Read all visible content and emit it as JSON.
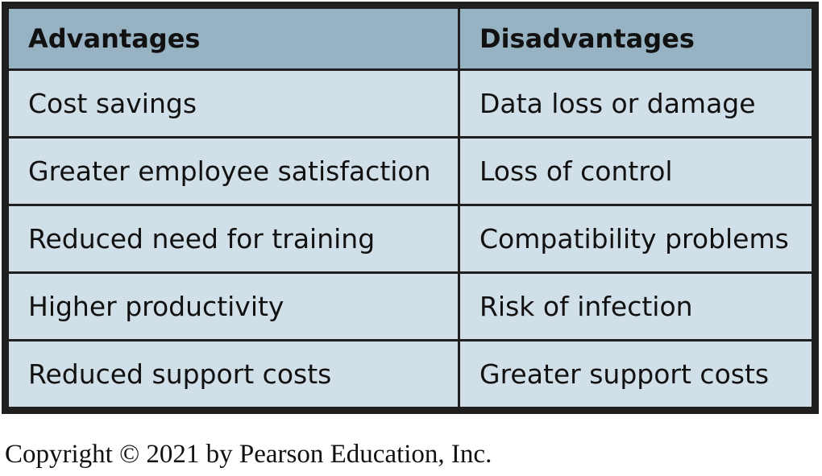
{
  "table": {
    "headers": [
      "Advantages",
      "Disadvantages"
    ],
    "rows": [
      [
        "Cost savings",
        "Data loss or damage"
      ],
      [
        "Greater employee satisfaction",
        "Loss of control"
      ],
      [
        "Reduced need for training",
        "Compatibility problems"
      ],
      [
        "Higher productivity",
        "Risk of infection"
      ],
      [
        "Reduced support costs",
        "Greater support costs"
      ]
    ]
  },
  "caption": "Copyright © 2021 by Pearson Education, Inc.",
  "colors": {
    "header_background": "#97b3c3",
    "cell_background": "#d1e0e8",
    "border": "#1f1f1f",
    "text": "#111111"
  }
}
